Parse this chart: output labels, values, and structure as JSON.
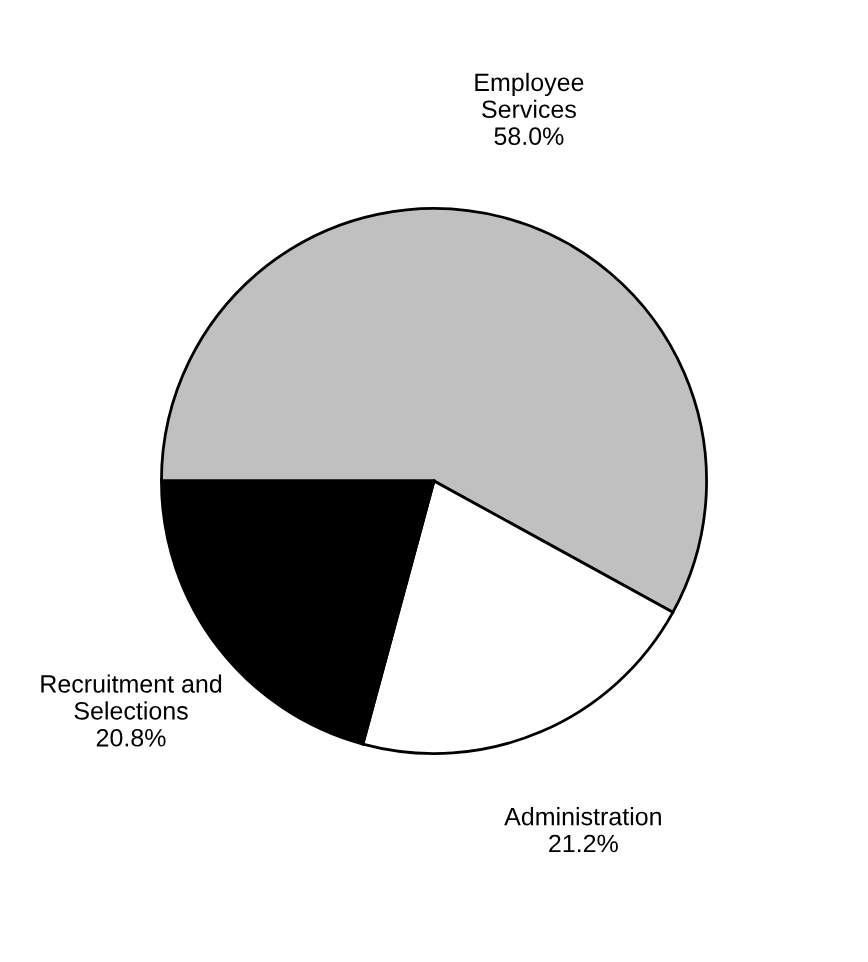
{
  "chart_data": {
    "type": "pie",
    "categories": [
      "Employee Services",
      "Administration",
      "Recruitment and Selections"
    ],
    "values": [
      58.0,
      21.2,
      20.8
    ],
    "value_labels": [
      "58.0%",
      "21.2%",
      "20.8%"
    ],
    "colors": [
      "#c0c0c0",
      "#ffffff",
      "#000000"
    ],
    "legend": false
  }
}
